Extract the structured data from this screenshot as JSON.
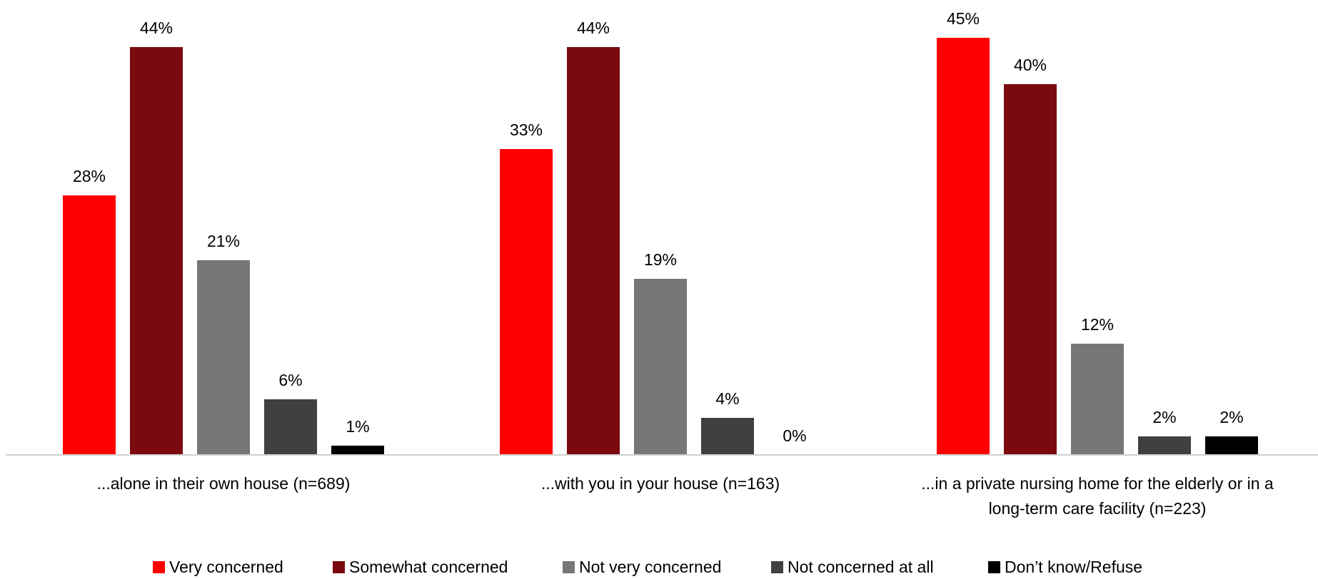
{
  "chart_data": {
    "type": "bar",
    "title": "",
    "xlabel": "",
    "ylabel": "",
    "ylim": [
      0,
      48
    ],
    "grid": false,
    "legend_position": "bottom",
    "categories": [
      "...alone in their own house (n=689)",
      "...with you in your house (n=163)",
      "...in a private nursing home for the elderly or in a long-term care facility (n=223)"
    ],
    "category_lines": [
      [
        "...alone in their own house (n=689)"
      ],
      [
        "...with you in your house (n=163)"
      ],
      [
        "...in a private nursing home for the elderly or in a",
        "long-term care facility (n=223)"
      ]
    ],
    "series": [
      {
        "name": "Very concerned",
        "color": "#ff0000",
        "values": [
          28,
          33,
          45
        ],
        "labels": [
          "28%",
          "33%",
          "45%"
        ]
      },
      {
        "name": "Somewhat concerned",
        "color": "#7b0a0f",
        "values": [
          44,
          44,
          40
        ],
        "labels": [
          "44%",
          "44%",
          "40%"
        ]
      },
      {
        "name": "Not very concerned",
        "color": "#767676",
        "values": [
          21,
          19,
          12
        ],
        "labels": [
          "21%",
          "19%",
          "12%"
        ]
      },
      {
        "name": "Not concerned at all",
        "color": "#404040",
        "values": [
          6,
          4,
          2
        ],
        "labels": [
          "6%",
          "4%",
          "2%"
        ]
      },
      {
        "name": "Don’t know/Refuse",
        "color": "#000000",
        "values": [
          1,
          0,
          2
        ],
        "labels": [
          "1%",
          "0%",
          "2%"
        ]
      }
    ]
  }
}
